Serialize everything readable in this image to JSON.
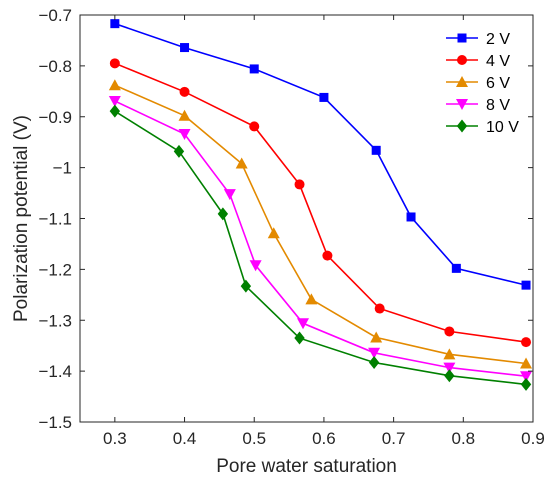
{
  "chart_data": {
    "type": "line",
    "title": "",
    "xlabel": "Pore water saturation",
    "ylabel": "Polarization potential (V)",
    "xlim": [
      0.25,
      0.9
    ],
    "ylim": [
      -1.5,
      -0.7
    ],
    "x_ticks": [
      0.3,
      0.4,
      0.5,
      0.6,
      0.7,
      0.8,
      0.9
    ],
    "x_tick_labels": [
      "0.3",
      "0.4",
      "0.5",
      "0.6",
      "0.7",
      "0.8",
      "0.9"
    ],
    "y_ticks": [
      -1.5,
      -1.4,
      -1.3,
      -1.2,
      -1.1,
      -1.0,
      -0.9,
      -0.8,
      -0.7
    ],
    "y_tick_labels": [
      "−1.5",
      "−1.4",
      "−1.3",
      "−1.2",
      "−1.1",
      "−1",
      "−0.9",
      "−0.8",
      "−0.7"
    ],
    "grid": false,
    "legend_position": "top-right",
    "series": [
      {
        "name": "2 V",
        "color": "#0000ff",
        "marker": "square",
        "x": [
          0.3,
          0.4,
          0.5,
          0.6,
          0.675,
          0.725,
          0.79,
          0.89
        ],
        "y": [
          -0.717,
          -0.764,
          -0.806,
          -0.862,
          -0.966,
          -1.097,
          -1.198,
          -1.231
        ]
      },
      {
        "name": "4 V",
        "color": "#ff0000",
        "marker": "circle",
        "x": [
          0.3,
          0.4,
          0.5,
          0.565,
          0.605,
          0.68,
          0.78,
          0.89
        ],
        "y": [
          -0.795,
          -0.851,
          -0.919,
          -1.033,
          -1.173,
          -1.277,
          -1.322,
          -1.343
        ]
      },
      {
        "name": "6 V",
        "color": "#e38a00",
        "marker": "triangle-up",
        "x": [
          0.3,
          0.4,
          0.482,
          0.528,
          0.582,
          0.675,
          0.78,
          0.89
        ],
        "y": [
          -0.838,
          -0.898,
          -0.992,
          -1.129,
          -1.259,
          -1.334,
          -1.367,
          -1.385
        ]
      },
      {
        "name": "8 V",
        "color": "#ff00ff",
        "marker": "triangle-down",
        "x": [
          0.3,
          0.4,
          0.465,
          0.502,
          0.57,
          0.672,
          0.78,
          0.89
        ],
        "y": [
          -0.869,
          -0.934,
          -1.052,
          -1.192,
          -1.306,
          -1.364,
          -1.393,
          -1.41
        ]
      },
      {
        "name": "10 V",
        "color": "#008000",
        "marker": "diamond",
        "x": [
          0.3,
          0.392,
          0.455,
          0.488,
          0.565,
          0.672,
          0.78,
          0.89
        ],
        "y": [
          -0.889,
          -0.968,
          -1.091,
          -1.233,
          -1.335,
          -1.383,
          -1.409,
          -1.426
        ]
      }
    ]
  }
}
